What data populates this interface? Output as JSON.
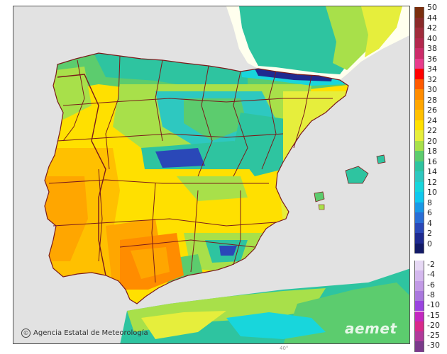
{
  "map": {
    "region": "Iberian Peninsula and Balearic Islands",
    "colors": {
      "sea": "#e2e2e2",
      "france": "#ffffee",
      "border": "#7a1b1b"
    }
  },
  "attribution": {
    "text": "Agencia Estatal de Meteorología",
    "icon": "copyright-icon"
  },
  "logo": {
    "text": "aemet"
  },
  "legend": {
    "warm_scale": [
      {
        "label": "50",
        "color": "#7a2e0e"
      },
      {
        "label": "44",
        "color": "#8a2a2a"
      },
      {
        "label": "42",
        "color": "#a02c3c"
      },
      {
        "label": "40",
        "color": "#b3284e"
      },
      {
        "label": "38",
        "color": "#cc2c6a"
      },
      {
        "label": "36",
        "color": "#e83c8c"
      },
      {
        "label": "34",
        "color": "#ff0000"
      },
      {
        "label": "32",
        "color": "#ff5a00"
      },
      {
        "label": "30",
        "color": "#ff8c00"
      },
      {
        "label": "28",
        "color": "#ffa600"
      },
      {
        "label": "26",
        "color": "#ffc000"
      },
      {
        "label": "24",
        "color": "#ffe000"
      },
      {
        "label": "22",
        "color": "#e6ee3c"
      },
      {
        "label": "20",
        "color": "#a8e04a"
      },
      {
        "label": "18",
        "color": "#5ccc6e"
      },
      {
        "label": "16",
        "color": "#2ec4a0"
      },
      {
        "label": "14",
        "color": "#2ec8c0"
      },
      {
        "label": "12",
        "color": "#18d6dc"
      },
      {
        "label": "10",
        "color": "#10c8ee"
      },
      {
        "label": "8",
        "color": "#1a98e6"
      },
      {
        "label": "6",
        "color": "#2a6ed6"
      },
      {
        "label": "4",
        "color": "#2a48b8"
      },
      {
        "label": "2",
        "color": "#1e2a90"
      },
      {
        "label": "0",
        "color": "#121a66"
      }
    ],
    "cold_scale": [
      {
        "label": "-2",
        "color": "#e6d8f4"
      },
      {
        "label": "-4",
        "color": "#d4b8ee"
      },
      {
        "label": "-6",
        "color": "#c29ae6"
      },
      {
        "label": "-8",
        "color": "#aa78de"
      },
      {
        "label": "-10",
        "color": "#9a44e0"
      },
      {
        "label": "-15",
        "color": "#c428c0"
      },
      {
        "label": "-20",
        "color": "#d82a8a"
      },
      {
        "label": "-25",
        "color": "#b03a9a"
      },
      {
        "label": "-30",
        "color": "#7a3a8a"
      }
    ]
  },
  "bottom_mark": "40°"
}
